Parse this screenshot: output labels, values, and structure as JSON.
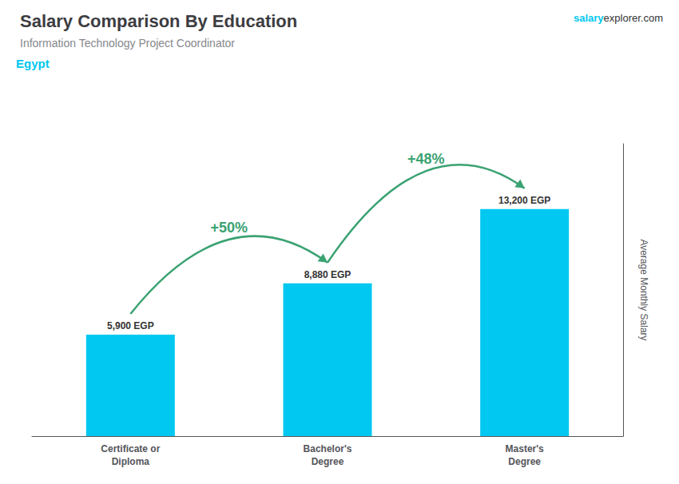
{
  "chart_data": {
    "type": "bar",
    "title": "Salary Comparison By Education",
    "subtitle": "Information Technology Project Coordinator",
    "ylabel": "Average Monthly Salary",
    "categories": [
      "Certificate or\nDiploma",
      "Bachelor's\nDegree",
      "Master's\nDegree"
    ],
    "values": [
      5900,
      8880,
      13200
    ],
    "value_labels": [
      "5,900 EGP",
      "8,880 EGP",
      "13,200 EGP"
    ],
    "data_labels": true,
    "color": "#00C8F0",
    "ylim": [
      0,
      17000
    ],
    "grid": false,
    "tick_labels": "x",
    "annotations": [
      {
        "text": "Egypt"
      },
      {
        "text": "salary"
      },
      {
        "text": "explorer.com"
      },
      {
        "text": "+50%",
        "from": "Certificate or\nDiploma",
        "to": "Bachelor's\nDegree"
      },
      {
        "text": "+48%",
        "from": "Bachelor's\nDegree",
        "to": "Master's\nDegree"
      }
    ]
  }
}
